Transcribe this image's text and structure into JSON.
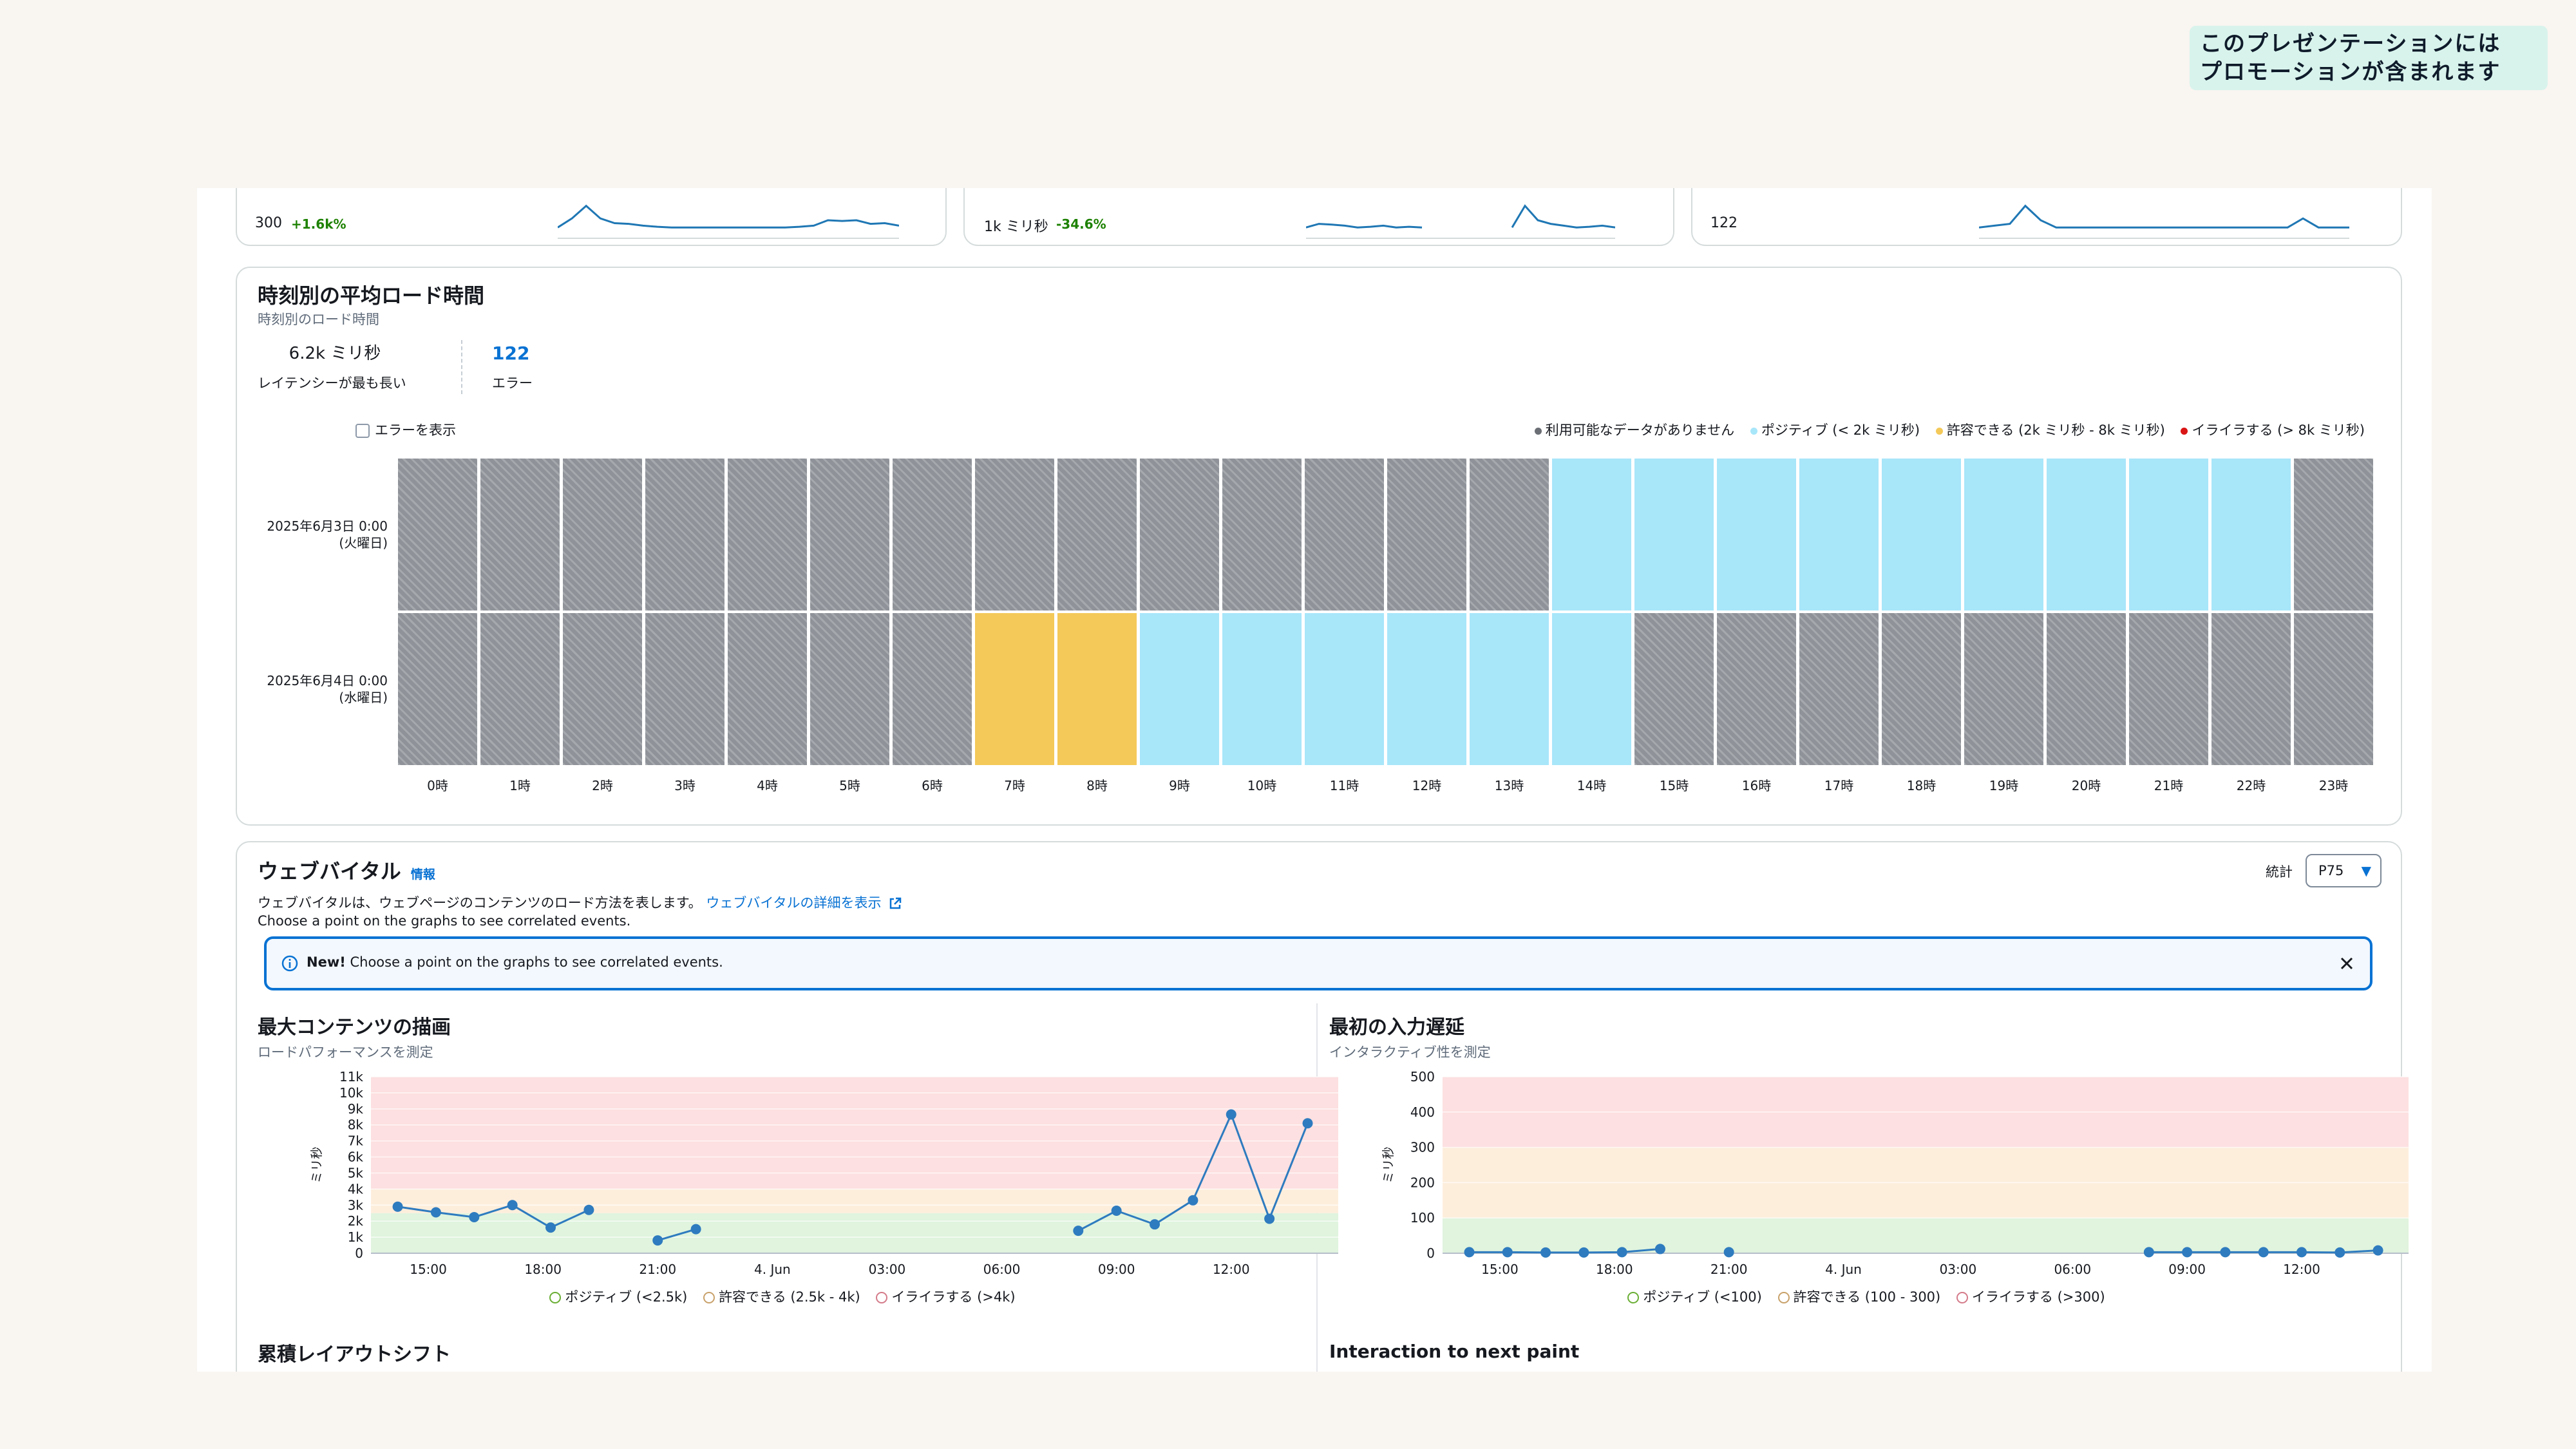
{
  "promo_badge": {
    "line1": "このプレゼンテーションには",
    "line2": "プロモーションが含まれます"
  },
  "top_metrics": [
    {
      "value": "300",
      "delta": "+1.6k%",
      "spark": [
        0.3,
        0.55,
        0.9,
        0.55,
        0.42,
        0.4,
        0.35,
        0.32,
        0.3,
        0.3,
        0.3,
        0.3,
        0.3,
        0.3,
        0.3,
        0.3,
        0.3,
        0.32,
        0.35,
        0.5,
        0.48,
        0.5,
        0.4,
        0.42,
        0.35
      ]
    },
    {
      "value": "1k ミリ秒",
      "delta": "-34.6%",
      "spark": [
        0.3,
        0.4,
        0.38,
        0.35,
        0.3,
        0.32,
        0.35,
        0.3,
        0.32,
        0.3,
        null,
        null,
        null,
        null,
        null,
        null,
        0.3,
        0.9,
        0.5,
        0.4,
        0.35,
        0.3,
        0.32,
        0.35,
        0.3
      ]
    },
    {
      "value": "122",
      "delta": "",
      "spark": [
        0.3,
        0.35,
        0.4,
        0.9,
        0.5,
        0.3,
        0.3,
        0.3,
        0.3,
        0.3,
        0.3,
        0.3,
        0.3,
        0.3,
        0.3,
        0.3,
        0.3,
        0.3,
        0.3,
        0.3,
        0.3,
        0.55,
        0.3,
        0.3,
        0.3
      ]
    }
  ],
  "heatmap": {
    "title": "時刻別の平均ロード時間",
    "subtitle": "時刻別のロード時間",
    "stat1": {
      "value": "6.2k ミリ秒",
      "label": "レイテンシーが最も長い"
    },
    "stat2": {
      "value": "122",
      "label": "エラー"
    },
    "show_errors_label": "エラーを表示",
    "legend": {
      "na": "利用可能なデータがありません",
      "positive": "ポジティブ (< 2k ミリ秒)",
      "tolerable": "許容できる (2k ミリ秒 - 8k ミリ秒)",
      "frustrating": "イライラする (> 8k ミリ秒)"
    },
    "colors": {
      "na": "#8f9399",
      "positive": "#a8e6fa",
      "tolerable": "#f4c959",
      "frustrating": "#d91515"
    },
    "rows": [
      {
        "label1": "2025年6月3日 0:00",
        "label2": "(火曜日)",
        "cells": [
          "na",
          "na",
          "na",
          "na",
          "na",
          "na",
          "na",
          "na",
          "na",
          "na",
          "na",
          "na",
          "na",
          "na",
          "pos",
          "pos",
          "pos",
          "pos",
          "pos",
          "pos",
          "pos",
          "pos",
          "pos",
          "na"
        ]
      },
      {
        "label1": "2025年6月4日 0:00",
        "label2": "(水曜日)",
        "cells": [
          "na",
          "na",
          "na",
          "na",
          "na",
          "na",
          "na",
          "tol",
          "tol",
          "pos",
          "pos",
          "pos",
          "pos",
          "pos",
          "pos",
          "na",
          "na",
          "na",
          "na",
          "na",
          "na",
          "na",
          "na",
          "na"
        ]
      }
    ],
    "hours": [
      "0時",
      "1時",
      "2時",
      "3時",
      "4時",
      "5時",
      "6時",
      "7時",
      "8時",
      "9時",
      "10時",
      "11時",
      "12時",
      "13時",
      "14時",
      "15時",
      "16時",
      "17時",
      "18時",
      "19時",
      "20時",
      "21時",
      "22時",
      "23時"
    ]
  },
  "web_vitals": {
    "title": "ウェブバイタル",
    "info": "情報",
    "desc": "ウェブバイタルは、ウェブページのコンテンツのロード方法を表します。",
    "desc_link": "ウェブバイタルの詳細を表示",
    "hint": "Choose a point on the graphs to see correlated events.",
    "stat_label": "統計",
    "stat_value": "P75",
    "alert_bold": "New!",
    "alert_text": "Choose a point on the graphs to see correlated events.",
    "bottom_left_title": "累積レイアウトシフト",
    "bottom_right_title": "Interaction to next paint"
  },
  "chart_data": [
    {
      "type": "line",
      "title": "最大コンテンツの描画",
      "subtitle": "ロードパフォーマンスを測定",
      "ylabel": "ミリ秒",
      "ylim": [
        0,
        11000
      ],
      "yticks": [
        "0",
        "1k",
        "2k",
        "3k",
        "4k",
        "5k",
        "6k",
        "7k",
        "8k",
        "9k",
        "10k",
        "11k"
      ],
      "xlim": [
        13.5,
        38.8
      ],
      "xticks": [
        {
          "x": 15,
          "label": "15:00"
        },
        {
          "x": 18,
          "label": "18:00"
        },
        {
          "x": 21,
          "label": "21:00"
        },
        {
          "x": 24,
          "label": "4. Jun"
        },
        {
          "x": 27,
          "label": "03:00"
        },
        {
          "x": 30,
          "label": "06:00"
        },
        {
          "x": 33,
          "label": "09:00"
        },
        {
          "x": 36,
          "label": "12:00"
        }
      ],
      "bands": [
        {
          "name": "ポジティブ (<2.5k)",
          "from": 0,
          "to": 2500,
          "color": "#e0f4de"
        },
        {
          "name": "許容できる (2.5k - 4k)",
          "from": 2500,
          "to": 4000,
          "color": "#fdeedc"
        },
        {
          "name": "イライラする (>4k)",
          "from": 4000,
          "to": 11000,
          "color": "#fde0e1"
        }
      ],
      "legend_colors": [
        "#69ae34",
        "#c8a16a",
        "#d47b8a"
      ],
      "segments": [
        [
          {
            "x": 14.2,
            "y": 2900
          },
          {
            "x": 15.2,
            "y": 2550
          },
          {
            "x": 16.2,
            "y": 2250
          },
          {
            "x": 17.2,
            "y": 3000
          },
          {
            "x": 18.2,
            "y": 1600
          },
          {
            "x": 19.2,
            "y": 2700
          }
        ],
        [
          {
            "x": 21,
            "y": 800
          },
          {
            "x": 22,
            "y": 1500
          }
        ],
        [
          {
            "x": 32,
            "y": 1400
          },
          {
            "x": 33,
            "y": 2650
          },
          {
            "x": 34,
            "y": 1800
          },
          {
            "x": 35,
            "y": 3300
          },
          {
            "x": 36,
            "y": 8650
          },
          {
            "x": 37,
            "y": 2150
          },
          {
            "x": 38,
            "y": 8100
          }
        ]
      ]
    },
    {
      "type": "line",
      "title": "最初の入力遅延",
      "subtitle": "インタラクティブ性を測定",
      "ylabel": "ミリ秒",
      "ylim": [
        0,
        500
      ],
      "yticks": [
        "0",
        "100",
        "200",
        "300",
        "400",
        "500"
      ],
      "xlim": [
        13.5,
        38.8
      ],
      "xticks": [
        {
          "x": 15,
          "label": "15:00"
        },
        {
          "x": 18,
          "label": "18:00"
        },
        {
          "x": 21,
          "label": "21:00"
        },
        {
          "x": 24,
          "label": "4. Jun"
        },
        {
          "x": 27,
          "label": "03:00"
        },
        {
          "x": 30,
          "label": "06:00"
        },
        {
          "x": 33,
          "label": "09:00"
        },
        {
          "x": 36,
          "label": "12:00"
        }
      ],
      "bands": [
        {
          "name": "ポジティブ (<100)",
          "from": 0,
          "to": 100,
          "color": "#e0f4de"
        },
        {
          "name": "許容できる (100 - 300)",
          "from": 100,
          "to": 300,
          "color": "#fdeedc"
        },
        {
          "name": "イライラする (>300)",
          "from": 300,
          "to": 500,
          "color": "#fde0e1"
        }
      ],
      "legend_colors": [
        "#69ae34",
        "#c8a16a",
        "#d47b8a"
      ],
      "segments": [
        [
          {
            "x": 14.2,
            "y": 3
          },
          {
            "x": 15.2,
            "y": 3
          },
          {
            "x": 16.2,
            "y": 2
          },
          {
            "x": 17.2,
            "y": 2
          },
          {
            "x": 18.2,
            "y": 3
          },
          {
            "x": 19.2,
            "y": 12
          }
        ],
        [
          {
            "x": 21,
            "y": 3
          }
        ],
        [
          {
            "x": 32,
            "y": 3
          },
          {
            "x": 33,
            "y": 3
          },
          {
            "x": 34,
            "y": 3
          },
          {
            "x": 35,
            "y": 3
          },
          {
            "x": 36,
            "y": 3
          },
          {
            "x": 37,
            "y": 2
          },
          {
            "x": 38,
            "y": 8
          }
        ]
      ]
    }
  ]
}
